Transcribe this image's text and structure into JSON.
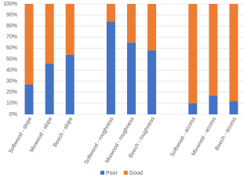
{
  "chart_data": {
    "type": "stacked_bar",
    "categories": [
      "Softwood - slope",
      "Mixwood - slope",
      "Beech - slope",
      null,
      "Softwood - roughness",
      "Mixwood - roughness",
      "Beech - roughness",
      null,
      "Softwood - access",
      "Mixwood - access",
      "Beech - access"
    ],
    "series": [
      {
        "name": "Poor",
        "color": "#4472c4",
        "values": [
          27,
          46,
          54,
          null,
          84,
          65,
          58,
          null,
          10,
          17,
          12
        ]
      },
      {
        "name": "Good",
        "color": "#ed7d31",
        "values": [
          73,
          54,
          46,
          null,
          16,
          35,
          42,
          null,
          90,
          83,
          88
        ]
      }
    ],
    "ylim": [
      0,
      100
    ],
    "yticks": [
      {
        "value": 0,
        "label": "0%"
      },
      {
        "value": 10,
        "label": "10%"
      },
      {
        "value": 20,
        "label": "20%"
      },
      {
        "value": 30,
        "label": "30%"
      },
      {
        "value": 40,
        "label": "40%"
      },
      {
        "value": 50,
        "label": "50%"
      },
      {
        "value": 60,
        "label": "60%"
      },
      {
        "value": 70,
        "label": "70%"
      },
      {
        "value": 80,
        "label": "80%"
      },
      {
        "value": 90,
        "label": "90%"
      },
      {
        "value": 100,
        "label": "100%"
      }
    ],
    "grid": true,
    "legend": "bottom"
  }
}
